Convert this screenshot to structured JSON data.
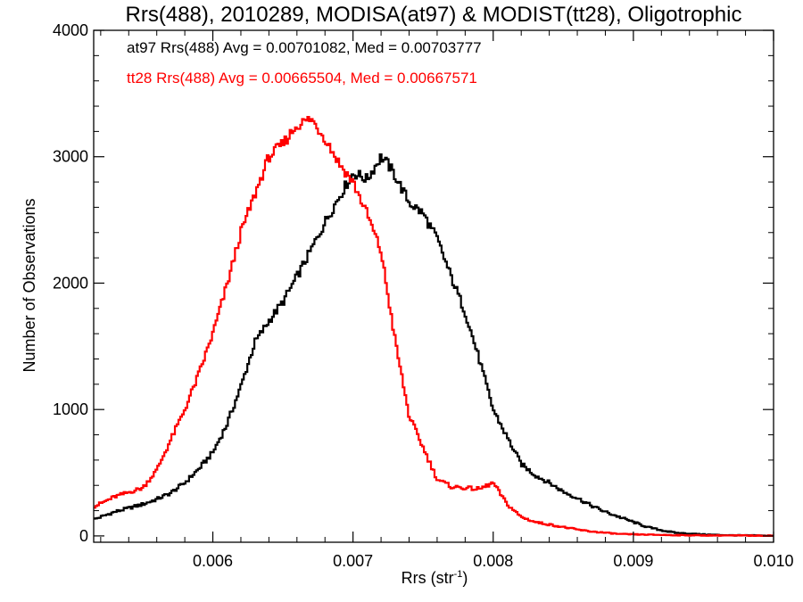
{
  "chart_data": {
    "type": "line",
    "title": "Rrs(488), 2010289, MODISA(at97) & MODIST(tt28), Oligotrophic",
    "xlabel_main": "Rrs (str",
    "xlabel_sup": "-1",
    "xlabel_close": ")",
    "ylabel": "Number of Observations",
    "xlim": [
      0.00515,
      0.01
    ],
    "ylim": [
      -50,
      4000
    ],
    "xticks": [
      0.006,
      0.007,
      0.008,
      0.009,
      0.01
    ],
    "xtick_labels": [
      "0.006",
      "0.007",
      "0.008",
      "0.009",
      "0.010"
    ],
    "yticks": [
      0,
      1000,
      2000,
      3000,
      4000
    ],
    "ytick_labels": [
      "0",
      "1000",
      "2000",
      "3000",
      "4000"
    ],
    "grid": false,
    "legend_position": "top-left",
    "series": [
      {
        "name": "at97",
        "color": "#000000",
        "annotation": "at97 Rrs(488) Avg = 0.00701082, Med = 0.00703777",
        "x": [
          0.00515,
          0.0053,
          0.0055,
          0.0056,
          0.0057,
          0.0058,
          0.0059,
          0.006,
          0.0061,
          0.0062,
          0.0063,
          0.0064,
          0.0065,
          0.0066,
          0.0067,
          0.0068,
          0.0069,
          0.007,
          0.00705,
          0.0071,
          0.0072,
          0.00725,
          0.0073,
          0.0074,
          0.0075,
          0.0076,
          0.0077,
          0.0078,
          0.0079,
          0.008,
          0.0081,
          0.0082,
          0.0083,
          0.0084,
          0.0085,
          0.0086,
          0.0087,
          0.0088,
          0.0089,
          0.009,
          0.0091,
          0.0092,
          0.0093,
          0.0094,
          0.0095,
          0.0096,
          0.0097,
          0.0098,
          0.0099,
          0.01
        ],
        "y": [
          130,
          190,
          250,
          290,
          340,
          420,
          530,
          660,
          880,
          1180,
          1530,
          1700,
          1850,
          2050,
          2260,
          2480,
          2680,
          2870,
          2850,
          2820,
          3000,
          2940,
          2850,
          2640,
          2550,
          2350,
          2050,
          1770,
          1400,
          1000,
          780,
          570,
          480,
          420,
          350,
          300,
          240,
          190,
          150,
          110,
          70,
          45,
          25,
          18,
          12,
          8,
          5,
          4,
          3,
          2
        ]
      },
      {
        "name": "tt28",
        "color": "#ff0000",
        "annotation": "tt28 Rrs(488) Avg = 0.00665504, Med = 0.00667571",
        "x": [
          0.00515,
          0.0053,
          0.0055,
          0.0056,
          0.0057,
          0.0058,
          0.0059,
          0.006,
          0.0061,
          0.0062,
          0.0063,
          0.0064,
          0.0065,
          0.0066,
          0.0067,
          0.0068,
          0.0069,
          0.007,
          0.0071,
          0.0072,
          0.0073,
          0.0074,
          0.0075,
          0.0076,
          0.0077,
          0.0078,
          0.0079,
          0.008,
          0.0081,
          0.0082,
          0.0083,
          0.0084,
          0.0085,
          0.0086,
          0.0087,
          0.0088,
          0.0089,
          0.009,
          0.0091,
          0.0092,
          0.0093,
          0.0094,
          0.0095,
          0.0096,
          0.0097,
          0.0098,
          0.0099,
          0.01
        ],
        "y": [
          230,
          310,
          380,
          520,
          760,
          1000,
          1280,
          1600,
          1980,
          2400,
          2700,
          3000,
          3100,
          3250,
          3300,
          3150,
          2950,
          2800,
          2550,
          2250,
          1550,
          950,
          700,
          450,
          390,
          380,
          370,
          420,
          250,
          150,
          110,
          90,
          70,
          50,
          35,
          25,
          15,
          12,
          10,
          8,
          6,
          5,
          4,
          4,
          3,
          3,
          2,
          2
        ]
      }
    ]
  }
}
